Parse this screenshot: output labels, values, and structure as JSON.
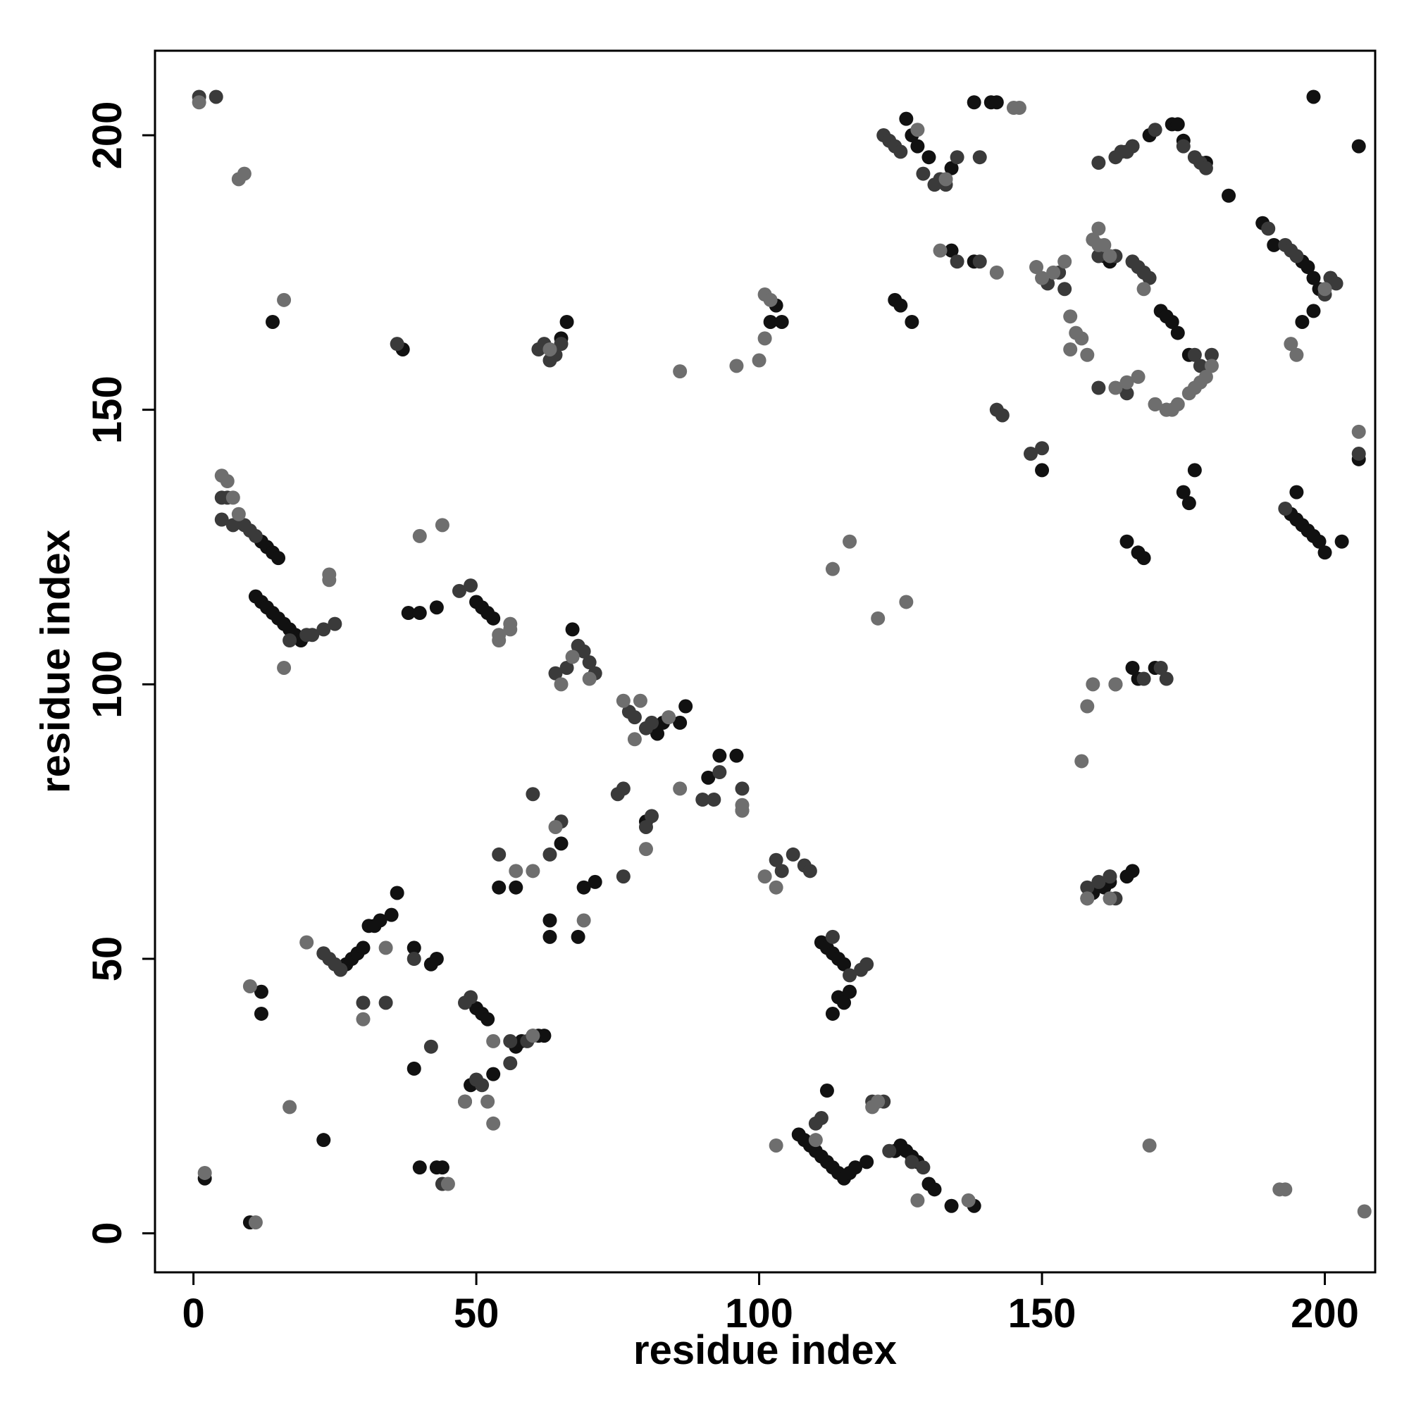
{
  "chart_data": {
    "type": "scatter",
    "x_label": "residue index",
    "y_label": "residue index",
    "xlim": [
      -6.8,
      208.9
    ],
    "ylim": [
      -7.1,
      215.4
    ],
    "xticks": [
      0,
      50,
      100,
      150,
      200
    ],
    "yticks": [
      0,
      50,
      100,
      150,
      200
    ],
    "series": [
      {
        "color": "#111111",
        "x": [
          14,
          37,
          12,
          13,
          14,
          15,
          11,
          12,
          13,
          14,
          15,
          16,
          17,
          18,
          19,
          38,
          40,
          43,
          50,
          51,
          52,
          53,
          66,
          65,
          67,
          82,
          83,
          86,
          87,
          91,
          93,
          96,
          80,
          111,
          112,
          113,
          114,
          115,
          114,
          115,
          116,
          113,
          102,
          103,
          104,
          126,
          127,
          128,
          130,
          134,
          138,
          141,
          142,
          124,
          125,
          127,
          134,
          138,
          150,
          161,
          162,
          165,
          166,
          168,
          169,
          173,
          174,
          175,
          179,
          183,
          171,
          172,
          173,
          174,
          176,
          177,
          175,
          176,
          165,
          167,
          168,
          194,
          195,
          196,
          197,
          198,
          199,
          200,
          195,
          203,
          189,
          191,
          196,
          197,
          198,
          199,
          198,
          196,
          201,
          198,
          206,
          206,
          166,
          167,
          170,
          159,
          161,
          162,
          166,
          165,
          107,
          108,
          109,
          110,
          111,
          112,
          113,
          114,
          115,
          116,
          117,
          112,
          119,
          124,
          125,
          126,
          127,
          128,
          130,
          131,
          134,
          138,
          12,
          27,
          28,
          29,
          30,
          31,
          32,
          33,
          35,
          36,
          39,
          42,
          43,
          40,
          43,
          44,
          50,
          51,
          52,
          49,
          53,
          57,
          58,
          60,
          61,
          62,
          54,
          57,
          63,
          65,
          68,
          69,
          71,
          12,
          2,
          10,
          23,
          39,
          63
        ],
        "y": [
          166,
          161,
          126,
          125,
          124,
          123,
          116,
          115,
          114,
          113,
          112,
          111,
          110,
          109,
          108,
          113,
          113,
          114,
          115,
          114,
          113,
          112,
          166,
          163,
          110,
          91,
          93,
          93,
          96,
          83,
          87,
          87,
          75,
          53,
          52,
          51,
          50,
          49,
          43,
          42,
          44,
          40,
          166,
          169,
          166,
          203,
          200,
          198,
          196,
          194,
          206,
          206,
          206,
          170,
          169,
          166,
          179,
          177,
          139,
          178,
          177,
          197,
          198,
          175,
          200,
          202,
          202,
          199,
          195,
          189,
          168,
          167,
          166,
          164,
          160,
          139,
          135,
          133,
          126,
          124,
          123,
          131,
          130,
          129,
          128,
          127,
          126,
          124,
          135,
          126,
          184,
          180,
          177,
          176,
          174,
          172,
          168,
          166,
          174,
          207,
          198,
          141,
          103,
          101,
          103,
          62,
          63,
          64,
          66,
          65,
          18,
          17,
          16,
          15,
          14,
          13,
          12,
          11,
          10,
          11,
          12,
          26,
          13,
          15,
          16,
          15,
          14,
          13,
          9,
          8,
          5,
          5,
          40,
          49,
          50,
          51,
          52,
          56,
          56,
          57,
          58,
          62,
          52,
          49,
          50,
          12,
          12,
          12,
          41,
          40,
          39,
          27,
          29,
          34,
          35,
          36,
          36,
          36,
          63,
          63,
          54,
          71,
          54,
          63,
          64,
          44,
          10,
          2,
          17,
          30,
          57
        ]
      },
      {
        "color": "#3a3a3a",
        "x": [
          1,
          4,
          36,
          5,
          5,
          6,
          7,
          9,
          10,
          11,
          17,
          20,
          21,
          23,
          25,
          47,
          49,
          61,
          62,
          63,
          64,
          65,
          64,
          66,
          68,
          69,
          70,
          71,
          77,
          78,
          80,
          81,
          90,
          92,
          93,
          97,
          97,
          75,
          76,
          81,
          103,
          104,
          106,
          108,
          109,
          113,
          116,
          118,
          119,
          122,
          123,
          124,
          125,
          129,
          131,
          132,
          133,
          135,
          139,
          135,
          139,
          142,
          143,
          148,
          150,
          151,
          153,
          154,
          160,
          163,
          164,
          165,
          166,
          160,
          163,
          166,
          167,
          168,
          169,
          170,
          177,
          178,
          179,
          175,
          160,
          165,
          170,
          172,
          178,
          177,
          180,
          193,
          190,
          193,
          194,
          195,
          200,
          201,
          202,
          206,
          158,
          162,
          163,
          168,
          171,
          172,
          158,
          160,
          163,
          162,
          110,
          111,
          120,
          122,
          123,
          127,
          129,
          23,
          24,
          25,
          26,
          30,
          34,
          39,
          42,
          44,
          48,
          49,
          50,
          51,
          48,
          56,
          56,
          59,
          63,
          65,
          76,
          80,
          54,
          60
        ],
        "y": [
          207,
          207,
          162,
          134,
          130,
          134,
          129,
          129,
          128,
          127,
          108,
          109,
          109,
          110,
          111,
          117,
          118,
          161,
          162,
          159,
          160,
          162,
          102,
          103,
          107,
          106,
          104,
          102,
          95,
          94,
          92,
          93,
          79,
          79,
          84,
          77,
          81,
          80,
          81,
          76,
          68,
          66,
          69,
          67,
          66,
          54,
          47,
          48,
          49,
          200,
          199,
          198,
          197,
          193,
          191,
          192,
          191,
          196,
          196,
          177,
          177,
          150,
          149,
          142,
          143,
          173,
          175,
          172,
          195,
          196,
          197,
          197,
          198,
          178,
          178,
          177,
          176,
          175,
          174,
          201,
          196,
          195,
          194,
          198,
          154,
          153,
          151,
          150,
          158,
          160,
          160,
          132,
          183,
          180,
          179,
          178,
          171,
          174,
          173,
          142,
          61,
          65,
          100,
          101,
          103,
          101,
          63,
          64,
          61,
          65,
          20,
          21,
          24,
          24,
          15,
          13,
          12,
          51,
          50,
          49,
          48,
          42,
          42,
          50,
          34,
          9,
          42,
          43,
          28,
          27,
          24,
          31,
          35,
          35,
          69,
          75,
          65,
          74,
          69,
          80
        ]
      },
      {
        "color": "#6e6e6e",
        "x": [
          1,
          8,
          9,
          16,
          5,
          6,
          8,
          7,
          24,
          24,
          16,
          40,
          44,
          54,
          56,
          63,
          67,
          65,
          70,
          76,
          79,
          84,
          78,
          86,
          97,
          97,
          101,
          101,
          103,
          86,
          96,
          100,
          101,
          102,
          113,
          116,
          121,
          126,
          128,
          132,
          133,
          145,
          146,
          142,
          149,
          150,
          152,
          154,
          155,
          156,
          157,
          155,
          158,
          159,
          160,
          161,
          162,
          168,
          160,
          163,
          165,
          167,
          170,
          172,
          173,
          174,
          176,
          177,
          178,
          179,
          180,
          194,
          195,
          200,
          206,
          157,
          158,
          159,
          163,
          158,
          162,
          169,
          192,
          193,
          207,
          110,
          120,
          121,
          103,
          128,
          137,
          2,
          11,
          10,
          17,
          20,
          34,
          30,
          48,
          53,
          54,
          56,
          57,
          60,
          60,
          64,
          69,
          80,
          45,
          52,
          53
        ],
        "y": [
          206,
          192,
          193,
          170,
          138,
          137,
          131,
          134,
          120,
          119,
          103,
          127,
          129,
          109,
          111,
          161,
          105,
          100,
          101,
          97,
          97,
          94,
          90,
          81,
          77,
          78,
          65,
          163,
          63,
          157,
          158,
          159,
          171,
          170,
          121,
          126,
          112,
          115,
          201,
          179,
          192,
          205,
          205,
          175,
          176,
          174,
          175,
          177,
          167,
          164,
          163,
          161,
          160,
          181,
          180,
          180,
          178,
          172,
          183,
          154,
          155,
          156,
          151,
          150,
          150,
          151,
          153,
          154,
          155,
          156,
          158,
          162,
          160,
          172,
          146,
          86,
          96,
          100,
          100,
          61,
          61,
          16,
          8,
          8,
          4,
          17,
          23,
          24,
          16,
          6,
          6,
          11,
          2,
          45,
          23,
          53,
          52,
          39,
          24,
          20,
          108,
          110,
          66,
          66,
          36,
          74,
          57,
          70,
          9,
          24,
          35
        ]
      }
    ]
  }
}
